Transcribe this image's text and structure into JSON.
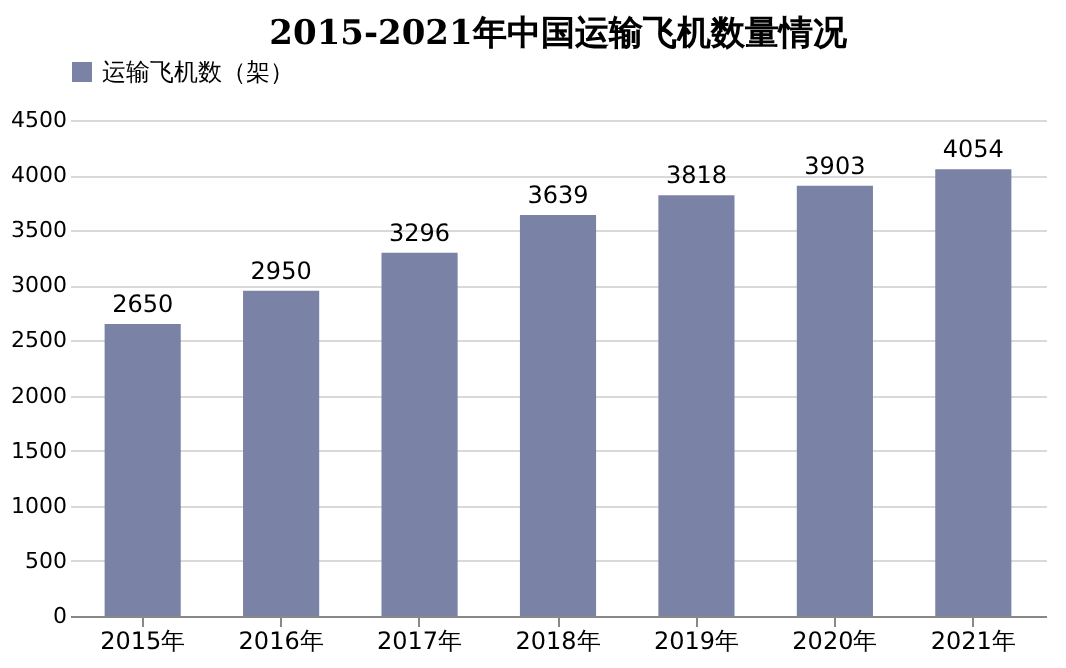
{
  "chart_data": {
    "type": "bar",
    "title": "2015-2021年中国运输飞机数量情况",
    "categories": [
      "2015年",
      "2016年",
      "2017年",
      "2018年",
      "2019年",
      "2020年",
      "2021年"
    ],
    "series": [
      {
        "name": "运输飞机数（架）",
        "color": "#7a82a6",
        "values": [
          2650,
          2950,
          3296,
          3639,
          3818,
          3903,
          4054
        ]
      }
    ],
    "ylim": [
      0,
      4500
    ],
    "yticks": [
      0,
      500,
      1000,
      1500,
      2000,
      2500,
      3000,
      3500,
      4000,
      4500
    ],
    "grid": "y",
    "legend": "top",
    "data_labels": true
  }
}
